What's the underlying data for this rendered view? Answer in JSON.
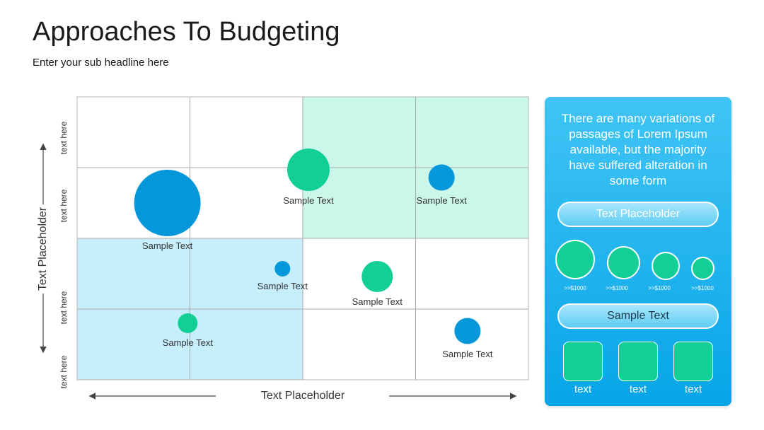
{
  "header": {
    "title": "Approaches To Budgeting",
    "subtitle": "Enter your sub headline here"
  },
  "chart_data": {
    "type": "scatter",
    "xlabel": "Text Placeholder",
    "ylabel": "Text Placeholder",
    "xlim": [
      0,
      4
    ],
    "ylim": [
      0,
      4
    ],
    "y_tick_labels": [
      "text here",
      "text here",
      "text here",
      "text here"
    ],
    "grid": true,
    "quadrant_highlights": [
      {
        "quadrant": "top-right",
        "color": "#cbf6ea"
      },
      {
        "quadrant": "bottom-left",
        "color": "#c6eefc"
      }
    ],
    "points": [
      {
        "label": "Sample Text",
        "x": 0.8,
        "y": 2.5,
        "size": 4.7,
        "color": "#0497d9"
      },
      {
        "label": "Sample Text",
        "x": 2.05,
        "y": 2.97,
        "size": 3.0,
        "color": "#12d095"
      },
      {
        "label": "Sample Text",
        "x": 3.23,
        "y": 2.86,
        "size": 1.85,
        "color": "#0497d9"
      },
      {
        "label": "Sample Text",
        "x": 1.82,
        "y": 1.57,
        "size": 1.1,
        "color": "#0497d9"
      },
      {
        "label": "Sample Text",
        "x": 2.66,
        "y": 1.46,
        "size": 2.2,
        "color": "#12d095"
      },
      {
        "label": "Sample Text",
        "x": 0.98,
        "y": 0.8,
        "size": 1.4,
        "color": "#12d095"
      },
      {
        "label": "Sample Text",
        "x": 3.46,
        "y": 0.69,
        "size": 1.85,
        "color": "#0497d9"
      }
    ]
  },
  "panel": {
    "description": "There are many variations of passages of Lorem Ipsum available, but the majority have suffered alteration in some form",
    "pill_top": "Text Placeholder",
    "bubbles": [
      {
        "label": ">>$1000",
        "size": 4
      },
      {
        "label": ">>$1000",
        "size": 3
      },
      {
        "label": ">>$1000",
        "size": 2.5
      },
      {
        "label": ">>$1000",
        "size": 2
      }
    ],
    "pill_bottom": "Sample Text",
    "squares": [
      {
        "label": "text"
      },
      {
        "label": "text"
      },
      {
        "label": "text"
      }
    ],
    "accent_color": "#12d095"
  }
}
